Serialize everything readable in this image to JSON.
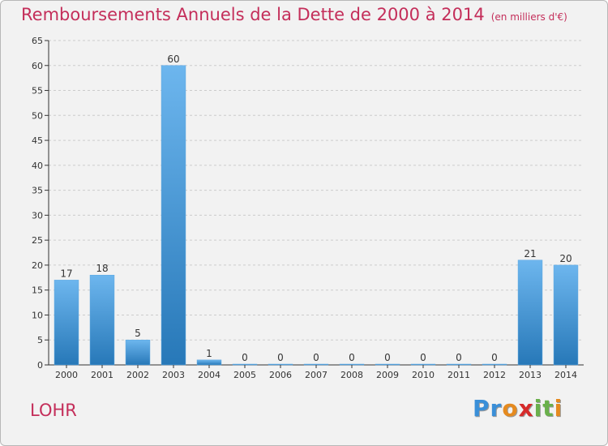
{
  "title": "Remboursements Annuels de la Dette de 2000 à 2014",
  "subtitle": "(en milliers d'€)",
  "commune": "LOHR",
  "logo": {
    "text": "Proxiti",
    "letters": [
      {
        "ch": "P",
        "color": "#3a8fd8"
      },
      {
        "ch": "r",
        "color": "#3a8fd8"
      },
      {
        "ch": "o",
        "color": "#e58a1f"
      },
      {
        "ch": "x",
        "color": "#d62a2a"
      },
      {
        "ch": "i",
        "color": "#6ab04c"
      },
      {
        "ch": "t",
        "color": "#6ab04c"
      },
      {
        "ch": "i",
        "color": "#e58a1f"
      }
    ]
  },
  "colors": {
    "title": "#c42e5a",
    "bar_top": "#6db6ee",
    "bar_bottom": "#2778b8",
    "grid": "#cccccc",
    "axis": "#333333"
  },
  "chart_data": {
    "type": "bar",
    "title": "Remboursements Annuels de la Dette de 2000 à 2014",
    "xlabel": "",
    "ylabel": "",
    "categories": [
      "2000",
      "2001",
      "2002",
      "2003",
      "2004",
      "2005",
      "2006",
      "2007",
      "2008",
      "2009",
      "2010",
      "2011",
      "2012",
      "2013",
      "2014"
    ],
    "values": [
      17,
      18,
      5,
      60,
      1,
      0,
      0,
      0,
      0,
      0,
      0,
      0,
      0,
      21,
      20
    ],
    "yticks": [
      0,
      5,
      10,
      15,
      20,
      25,
      30,
      35,
      40,
      45,
      50,
      55,
      60,
      65
    ],
    "ylim": [
      0,
      65
    ],
    "grid": true,
    "legend": "none"
  }
}
